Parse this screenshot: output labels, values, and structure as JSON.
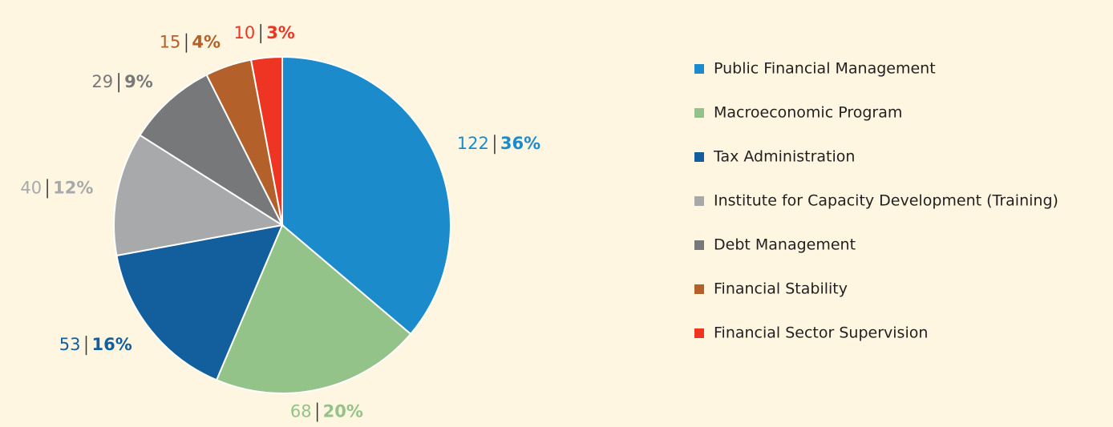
{
  "chart_data": {
    "type": "pie",
    "categories": [
      "Public Financial Management",
      "Macroeconomic Program",
      "Tax Administration",
      "Institute for Capacity Development (Training)",
      "Debt Management",
      "Financial Stability",
      "Financial Sector Supervision"
    ],
    "values": [
      122,
      68,
      53,
      40,
      29,
      15,
      10
    ],
    "percent_labels": [
      "36%",
      "20%",
      "16%",
      "12%",
      "9%",
      "4%",
      "3%"
    ],
    "colors": [
      "#1b8bcc",
      "#94c389",
      "#135e9c",
      "#a7a9ab",
      "#77787a",
      "#b3602a",
      "#ee3524"
    ],
    "legend": "right"
  }
}
